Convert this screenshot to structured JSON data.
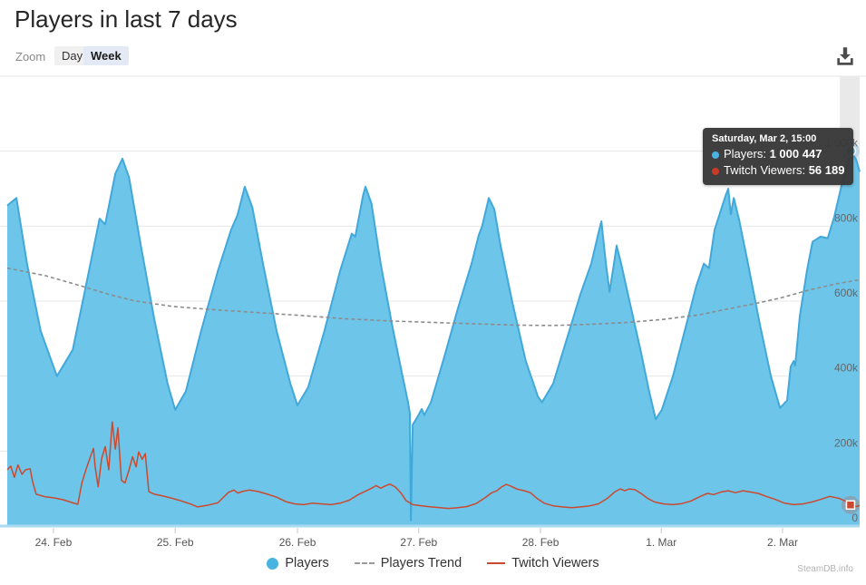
{
  "header": {
    "title": "Players in last 7 days"
  },
  "toolbar": {
    "zoom_label": "Zoom",
    "day_label": "Day",
    "week_label": "Week",
    "download_icon": "download-icon"
  },
  "tooltip": {
    "date": "Saturday, Mar 2, 15:00",
    "rows": [
      {
        "label": "Players:",
        "value": "1 000 447",
        "color": "#49b3e2"
      },
      {
        "label": "Twitch Viewers:",
        "value": "56 189",
        "color": "#cb3a26"
      }
    ]
  },
  "legend": [
    {
      "label": "Players",
      "type": "circle",
      "color": "#49b3e2"
    },
    {
      "label": "Players Trend",
      "type": "dashed",
      "color": "#999999"
    },
    {
      "label": "Twitch Viewers",
      "type": "line",
      "color": "#cb4a2f"
    }
  ],
  "watermark": "SteamDB.info",
  "chart_data": {
    "type": "area",
    "title": "Players in last 7 days",
    "x_unit": "hours_since_window_start",
    "window_hours": 168,
    "y_unit": "thousands_of_players",
    "ylim": [
      0,
      1200
    ],
    "grid": true,
    "legend_position": "bottom",
    "x_ticks": [
      {
        "h": 9.1,
        "label": "24. Feb"
      },
      {
        "h": 33.1,
        "label": "25. Feb"
      },
      {
        "h": 57.2,
        "label": "26. Feb"
      },
      {
        "h": 81.1,
        "label": "27. Feb"
      },
      {
        "h": 105.1,
        "label": "28. Feb"
      },
      {
        "h": 128.9,
        "label": "1. Mar"
      },
      {
        "h": 152.8,
        "label": "2. Mar"
      }
    ],
    "y_ticks": [
      {
        "v": 0,
        "label": "0"
      },
      {
        "v": 200,
        "label": "200k"
      },
      {
        "v": 400,
        "label": "400k"
      },
      {
        "v": 600,
        "label": "600k"
      },
      {
        "v": 800,
        "label": "800k"
      },
      {
        "v": 1000,
        "label": "1 000k"
      }
    ],
    "colors": {
      "grid": "#e7e7e7",
      "baseline": "#a9daf0",
      "crosshair_band": "#e9e9e9",
      "axis_label": "#666666"
    },
    "crosshair": {
      "from_h": 164.1,
      "to_h": 168
    },
    "marker": {
      "h": 166.2,
      "players": 1000.447,
      "twitch": 56.189
    },
    "last_values": {
      "players": 1000447,
      "twitch_viewers": 56189
    },
    "series": [
      {
        "name": "Players",
        "type": "area",
        "color": "#41a8da",
        "fill": "#6dc5e9",
        "points": [
          [
            0,
            855
          ],
          [
            1.8,
            875
          ],
          [
            3.9,
            700
          ],
          [
            6.6,
            520
          ],
          [
            9.8,
            400
          ],
          [
            12.9,
            470
          ],
          [
            15.5,
            640
          ],
          [
            18.2,
            820
          ],
          [
            19.3,
            805
          ],
          [
            21.3,
            940
          ],
          [
            22.7,
            980
          ],
          [
            24,
            930
          ],
          [
            26.3,
            750
          ],
          [
            29,
            550
          ],
          [
            31.6,
            380
          ],
          [
            33.1,
            310
          ],
          [
            35.2,
            360
          ],
          [
            38.2,
            520
          ],
          [
            41.5,
            680
          ],
          [
            44.1,
            790
          ],
          [
            45.4,
            830
          ],
          [
            46.8,
            905
          ],
          [
            48.3,
            850
          ],
          [
            50.4,
            700
          ],
          [
            53.1,
            520
          ],
          [
            55.8,
            380
          ],
          [
            57.2,
            322
          ],
          [
            59.3,
            370
          ],
          [
            62.5,
            520
          ],
          [
            65.6,
            680
          ],
          [
            67.9,
            780
          ],
          [
            68.6,
            772
          ],
          [
            70.1,
            880
          ],
          [
            70.6,
            905
          ],
          [
            71.8,
            860
          ],
          [
            73.6,
            700
          ],
          [
            75.8,
            540
          ],
          [
            77.9,
            400
          ],
          [
            79,
            330
          ],
          [
            79.35,
            300
          ],
          [
            79.55,
            15
          ],
          [
            79.9,
            270
          ],
          [
            80.8,
            290
          ],
          [
            81.7,
            312
          ],
          [
            82.2,
            296
          ],
          [
            83.5,
            330
          ],
          [
            86.1,
            450
          ],
          [
            88.8,
            580
          ],
          [
            91.5,
            700
          ],
          [
            92.9,
            775
          ],
          [
            93.6,
            800
          ],
          [
            94.9,
            875
          ],
          [
            96,
            845
          ],
          [
            97.2,
            750
          ],
          [
            99.5,
            600
          ],
          [
            102.2,
            440
          ],
          [
            104.6,
            345
          ],
          [
            105.4,
            330
          ],
          [
            107.6,
            380
          ],
          [
            110.3,
            500
          ],
          [
            113,
            620
          ],
          [
            115.1,
            700
          ],
          [
            116.5,
            780
          ],
          [
            117.1,
            813
          ],
          [
            118,
            700
          ],
          [
            118.7,
            625
          ],
          [
            119.4,
            685
          ],
          [
            120.1,
            748
          ],
          [
            121,
            700
          ],
          [
            122.8,
            590
          ],
          [
            124.8,
            470
          ],
          [
            126.5,
            360
          ],
          [
            127.8,
            285
          ],
          [
            129,
            310
          ],
          [
            131.2,
            400
          ],
          [
            133.5,
            520
          ],
          [
            135.8,
            640
          ],
          [
            137.3,
            700
          ],
          [
            138.3,
            688
          ],
          [
            139.4,
            790
          ],
          [
            140.7,
            845
          ],
          [
            141.6,
            882
          ],
          [
            142.1,
            900
          ],
          [
            142.6,
            832
          ],
          [
            143.2,
            875
          ],
          [
            144.2,
            820
          ],
          [
            146,
            700
          ],
          [
            148.3,
            540
          ],
          [
            150.5,
            400
          ],
          [
            152.3,
            315
          ],
          [
            153.7,
            335
          ],
          [
            154.4,
            425
          ],
          [
            155,
            440
          ],
          [
            155.3,
            428
          ],
          [
            156.2,
            560
          ],
          [
            157.6,
            680
          ],
          [
            158.7,
            758
          ],
          [
            160.3,
            772
          ],
          [
            161.7,
            768
          ],
          [
            163,
            825
          ],
          [
            164.8,
            930
          ],
          [
            165.5,
            965
          ],
          [
            166.2,
            1000.447
          ],
          [
            167.3,
            978
          ],
          [
            168,
            945
          ]
        ]
      },
      {
        "name": "Players Trend",
        "type": "dashed-line",
        "color": "#8c8c8c",
        "points": [
          [
            0,
            688
          ],
          [
            7.5,
            668
          ],
          [
            14.7,
            640
          ],
          [
            20,
            618
          ],
          [
            25.4,
            600
          ],
          [
            32.5,
            586
          ],
          [
            39.7,
            578
          ],
          [
            48.6,
            570
          ],
          [
            57.6,
            562
          ],
          [
            66.5,
            553
          ],
          [
            75.4,
            547
          ],
          [
            84.4,
            543
          ],
          [
            93.3,
            539
          ],
          [
            100.4,
            536
          ],
          [
            107.6,
            535
          ],
          [
            114.8,
            538
          ],
          [
            121.9,
            543
          ],
          [
            129,
            551
          ],
          [
            136.2,
            563
          ],
          [
            141.6,
            578
          ],
          [
            146.9,
            592
          ],
          [
            152.3,
            608
          ],
          [
            157.6,
            628
          ],
          [
            163,
            645
          ],
          [
            168,
            657
          ]
        ]
      },
      {
        "name": "Twitch Viewers",
        "type": "line",
        "color": "#cb4a2f",
        "points": [
          [
            0,
            150
          ],
          [
            0.7,
            160
          ],
          [
            1.4,
            130
          ],
          [
            2.1,
            163
          ],
          [
            2.9,
            138
          ],
          [
            3.6,
            150
          ],
          [
            4.5,
            153
          ],
          [
            5,
            118
          ],
          [
            5.7,
            85
          ],
          [
            7.5,
            78
          ],
          [
            9.3,
            75
          ],
          [
            11.1,
            70
          ],
          [
            12.9,
            62
          ],
          [
            13.9,
            58
          ],
          [
            14.7,
            115
          ],
          [
            15.5,
            150
          ],
          [
            16.4,
            185
          ],
          [
            17,
            207
          ],
          [
            17.3,
            160
          ],
          [
            17.9,
            105
          ],
          [
            18.6,
            180
          ],
          [
            19.3,
            212
          ],
          [
            20,
            150
          ],
          [
            20.7,
            278
          ],
          [
            21.3,
            205
          ],
          [
            21.8,
            262
          ],
          [
            22.5,
            122
          ],
          [
            23.2,
            115
          ],
          [
            24,
            150
          ],
          [
            24.7,
            185
          ],
          [
            25.4,
            158
          ],
          [
            25.9,
            198
          ],
          [
            26.6,
            178
          ],
          [
            27.2,
            193
          ],
          [
            27.9,
            92
          ],
          [
            29,
            85
          ],
          [
            30.7,
            80
          ],
          [
            32.5,
            74
          ],
          [
            34.3,
            67
          ],
          [
            36.1,
            59
          ],
          [
            37.5,
            51
          ],
          [
            39.3,
            55
          ],
          [
            41.5,
            62
          ],
          [
            43.6,
            90
          ],
          [
            44.7,
            96
          ],
          [
            45.4,
            88
          ],
          [
            46.5,
            93
          ],
          [
            47.7,
            96
          ],
          [
            49.5,
            92
          ],
          [
            51.3,
            85
          ],
          [
            53.1,
            77
          ],
          [
            54.9,
            65
          ],
          [
            56.7,
            59
          ],
          [
            58.4,
            57
          ],
          [
            60.2,
            61
          ],
          [
            62,
            59
          ],
          [
            63.8,
            57
          ],
          [
            65.6,
            61
          ],
          [
            67.4,
            69
          ],
          [
            69.2,
            84
          ],
          [
            70.6,
            93
          ],
          [
            71.8,
            101
          ],
          [
            72.7,
            108
          ],
          [
            73.6,
            101
          ],
          [
            74.5,
            107
          ],
          [
            75.4,
            112
          ],
          [
            76.5,
            104
          ],
          [
            77.6,
            88
          ],
          [
            78.6,
            68
          ],
          [
            79.9,
            57
          ],
          [
            81.7,
            54
          ],
          [
            83.5,
            51
          ],
          [
            85.3,
            49
          ],
          [
            87,
            47
          ],
          [
            88.8,
            49
          ],
          [
            90.6,
            52
          ],
          [
            92.4,
            60
          ],
          [
            94.2,
            76
          ],
          [
            95.4,
            88
          ],
          [
            96.5,
            94
          ],
          [
            97.4,
            104
          ],
          [
            98.3,
            111
          ],
          [
            99.2,
            107
          ],
          [
            100.4,
            99
          ],
          [
            101.9,
            94
          ],
          [
            103.1,
            89
          ],
          [
            104.4,
            74
          ],
          [
            105.8,
            61
          ],
          [
            107.6,
            54
          ],
          [
            109.4,
            51
          ],
          [
            111.2,
            49
          ],
          [
            113,
            51
          ],
          [
            114.8,
            54
          ],
          [
            116.5,
            59
          ],
          [
            118.3,
            74
          ],
          [
            119.7,
            91
          ],
          [
            120.8,
            99
          ],
          [
            121.7,
            94
          ],
          [
            122.6,
            99
          ],
          [
            123.7,
            97
          ],
          [
            124.9,
            87
          ],
          [
            126.2,
            74
          ],
          [
            127.6,
            64
          ],
          [
            129.4,
            59
          ],
          [
            131.2,
            57
          ],
          [
            133,
            60
          ],
          [
            134.8,
            67
          ],
          [
            136.6,
            79
          ],
          [
            138,
            87
          ],
          [
            139.2,
            84
          ],
          [
            140.7,
            91
          ],
          [
            142.1,
            94
          ],
          [
            143.5,
            89
          ],
          [
            145,
            94
          ],
          [
            146.4,
            91
          ],
          [
            148,
            87
          ],
          [
            149.6,
            79
          ],
          [
            151.4,
            71
          ],
          [
            153.2,
            61
          ],
          [
            155,
            57
          ],
          [
            156.8,
            59
          ],
          [
            158.6,
            64
          ],
          [
            160.3,
            71
          ],
          [
            162.1,
            79
          ],
          [
            163.9,
            74
          ],
          [
            165.1,
            67
          ],
          [
            166.2,
            56.189
          ],
          [
            167.3,
            52
          ],
          [
            168,
            55
          ]
        ]
      }
    ]
  }
}
